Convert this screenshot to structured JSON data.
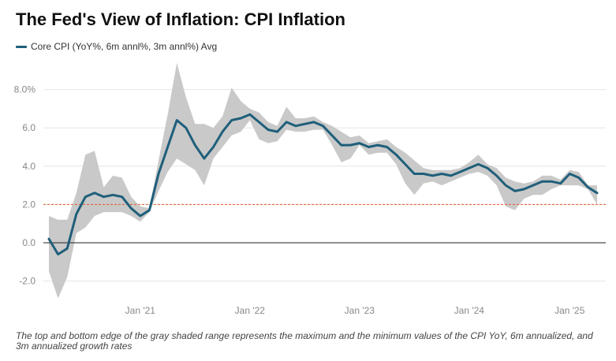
{
  "colors": {
    "line": "#1f5f7a",
    "band": "#c9c9c9",
    "target": "#e05a2b",
    "zero": "#222222",
    "grid": "#e6e6e6"
  },
  "chart_data": {
    "type": "line",
    "title": "The Fed's View of Inflation: CPI Inflation",
    "legend": [
      "Core CPI (YoY%, 6m annl%, 3m annl%) Avg"
    ],
    "footnote": "The top and bottom edge of the gray shaded range represents the maximum and the minimum values of the CPI YoY, 6m annualized, and 3m annualized growth rates",
    "ylim": [
      -2.5,
      9.5
    ],
    "yticks": [
      -2.0,
      0.0,
      2.0,
      4.0,
      6.0,
      8.0
    ],
    "ytick_labels": [
      "-2.0",
      "0.0",
      "2.0",
      "4.0",
      "6.0",
      "8.0%"
    ],
    "x_tick_labels": [
      {
        "label": "Jan '21",
        "index": 10
      },
      {
        "label": "Jan '22",
        "index": 22
      },
      {
        "label": "Jan '23",
        "index": 34
      },
      {
        "label": "Jan '24",
        "index": 46
      },
      {
        "label": "Jan '25",
        "index": 57
      }
    ],
    "reference_line": {
      "value": 2.0,
      "style": "dashed"
    },
    "series": [
      {
        "name": "Core CPI (YoY%, 6m annl%, 3m annl%) Avg",
        "values": [
          0.2,
          -0.6,
          -0.3,
          1.5,
          2.4,
          2.6,
          2.4,
          2.5,
          2.4,
          1.8,
          1.4,
          1.7,
          3.6,
          5.0,
          6.4,
          6.0,
          5.1,
          4.4,
          5.0,
          5.8,
          6.4,
          6.5,
          6.7,
          6.3,
          5.9,
          5.8,
          6.3,
          6.1,
          6.2,
          6.3,
          6.1,
          5.6,
          5.1,
          5.1,
          5.2,
          5.0,
          5.1,
          5.0,
          4.6,
          4.1,
          3.6,
          3.6,
          3.5,
          3.6,
          3.5,
          3.7,
          3.9,
          4.1,
          3.9,
          3.5,
          3.0,
          2.7,
          2.8,
          3.0,
          3.2,
          3.2,
          3.1,
          3.6,
          3.4,
          2.9,
          2.6
        ]
      }
    ],
    "range_upper": [
      1.4,
      1.2,
      1.2,
      2.6,
      4.6,
      4.8,
      2.9,
      3.5,
      3.4,
      2.4,
      1.9,
      1.8,
      4.3,
      6.7,
      9.4,
      7.6,
      6.2,
      6.2,
      6.0,
      6.6,
      8.1,
      7.4,
      7.0,
      6.8,
      6.3,
      6.1,
      7.1,
      6.5,
      6.5,
      6.6,
      6.3,
      6.1,
      5.8,
      5.5,
      5.6,
      5.2,
      5.3,
      5.4,
      5.0,
      4.7,
      4.3,
      3.9,
      3.8,
      3.8,
      3.8,
      3.9,
      4.2,
      4.6,
      4.1,
      3.9,
      3.4,
      3.2,
      3.1,
      3.2,
      3.5,
      3.5,
      3.3,
      3.8,
      3.7,
      3.0,
      3.0
    ],
    "range_lower": [
      -1.5,
      -2.9,
      -1.8,
      0.5,
      0.8,
      1.4,
      1.6,
      1.6,
      1.6,
      1.4,
      1.1,
      1.6,
      2.7,
      3.7,
      4.4,
      4.1,
      3.8,
      3.0,
      4.4,
      5.0,
      5.6,
      5.8,
      6.4,
      5.4,
      5.2,
      5.3,
      5.9,
      5.8,
      5.8,
      5.9,
      5.9,
      5.1,
      4.2,
      4.4,
      5.1,
      4.6,
      4.7,
      4.7,
      4.1,
      3.1,
      2.5,
      3.1,
      3.2,
      3.0,
      3.2,
      3.4,
      3.6,
      3.7,
      3.5,
      3.0,
      1.9,
      1.7,
      2.3,
      2.5,
      2.5,
      2.8,
      3.0,
      3.0,
      3.0,
      2.8,
      2.0
    ]
  }
}
